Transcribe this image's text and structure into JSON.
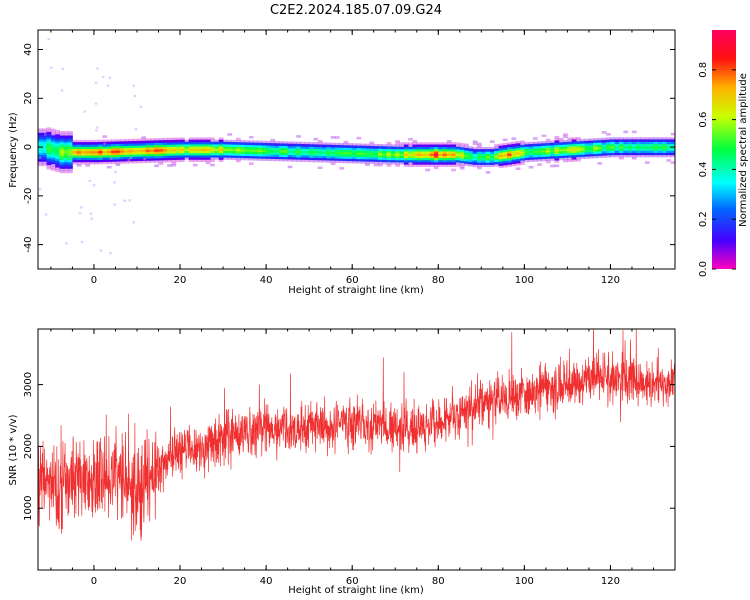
{
  "title": "C2E2.2024.185.07.09.G24",
  "colors": {
    "snr_line": "#f03030",
    "axis": "#000000",
    "background": "#ffffff"
  },
  "chart_data": [
    {
      "type": "heatmap",
      "xlabel": "Height of straight line (km)",
      "ylabel": "Frequency (Hz)",
      "xlim": [
        -13,
        135
      ],
      "ylim": [
        -50,
        48
      ],
      "xticks": [
        0,
        20,
        40,
        60,
        80,
        100,
        120
      ],
      "yticks": [
        -40,
        -20,
        0,
        20,
        40
      ],
      "grid": false,
      "colorbar": {
        "label": "Normalized spectral amplitude",
        "range": [
          0,
          0.96
        ],
        "ticks": [
          "0.0",
          "0.2",
          "0.4",
          "0.6",
          "0.8"
        ],
        "tick_values": [
          0.0,
          0.2,
          0.4,
          0.6,
          0.8
        ],
        "colormap": "gist_rainbow_r"
      },
      "ridge": {
        "x": [
          -12,
          -8,
          -4,
          0,
          10,
          20,
          30,
          40,
          50,
          60,
          70,
          80,
          84,
          88,
          92,
          96,
          100,
          110,
          120,
          130,
          135
        ],
        "frequency": [
          0,
          -2,
          -2,
          -2,
          -1.5,
          -1,
          -1,
          -1.5,
          -2,
          -2.5,
          -3,
          -3,
          -3,
          -4,
          -4,
          -3,
          -2,
          -1,
          0,
          0,
          0
        ],
        "peak_amplitude": [
          0.5,
          0.6,
          0.8,
          0.85,
          0.9,
          0.75,
          0.7,
          0.6,
          0.5,
          0.55,
          0.65,
          0.95,
          0.7,
          0.5,
          0.6,
          0.85,
          0.6,
          0.7,
          0.55,
          0.55,
          0.5
        ]
      }
    },
    {
      "type": "line",
      "xlabel": "Height of straight line (km)",
      "ylabel": "SNR (10 * v/v)",
      "xlim": [
        -13,
        135
      ],
      "ylim": [
        0,
        3900
      ],
      "xticks": [
        0,
        20,
        40,
        60,
        80,
        100,
        120
      ],
      "yticks": [
        1000,
        2000,
        3000
      ],
      "grid": false,
      "trend": {
        "x": [
          -13,
          -8,
          -4,
          0,
          5,
          10,
          15,
          20,
          25,
          30,
          35,
          40,
          45,
          50,
          55,
          60,
          65,
          70,
          75,
          80,
          85,
          90,
          95,
          100,
          105,
          110,
          115,
          120,
          125,
          130,
          135
        ],
        "snr": [
          1500,
          1350,
          1550,
          1400,
          1600,
          1200,
          1700,
          1950,
          2000,
          2100,
          2200,
          2300,
          2250,
          2350,
          2300,
          2400,
          2350,
          2300,
          2250,
          2450,
          2500,
          2700,
          2750,
          2850,
          2950,
          3050,
          3100,
          3150,
          3050,
          3000,
          3000
        ]
      }
    }
  ]
}
